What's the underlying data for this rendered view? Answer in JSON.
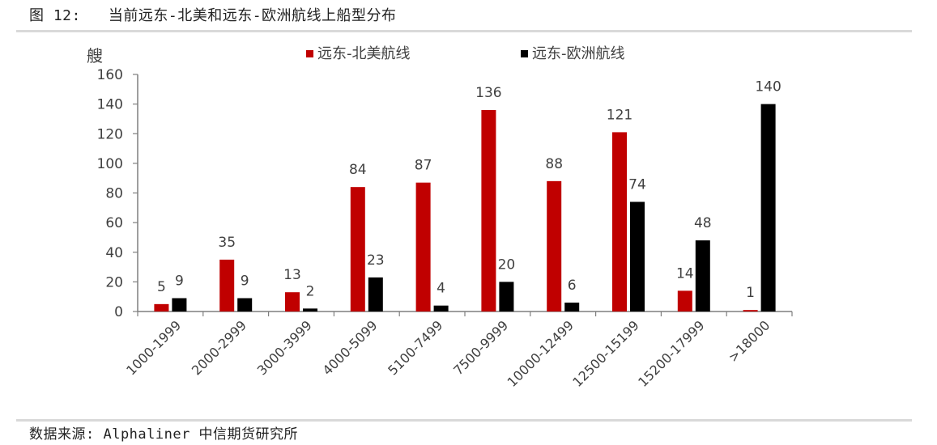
{
  "figure": {
    "number": "图 12:",
    "title": "当前远东-北美和远东-欧洲航线上船型分布"
  },
  "source": "数据来源: Alphaliner 中信期货研究所",
  "colors": {
    "series_1": "#c00000",
    "series_2": "#000000",
    "axis": "#7f7f7f",
    "text": "#404040"
  },
  "chart_data": {
    "type": "bar",
    "title": "",
    "ylabel": "艘",
    "xlabel": "",
    "ylim": [
      0,
      160
    ],
    "yticks": [
      0,
      20,
      40,
      60,
      80,
      100,
      120,
      140,
      160
    ],
    "grid": false,
    "legend_position": "top",
    "categories": [
      "1000-1999",
      "2000-2999",
      "3000-3999",
      "4000-5099",
      "5100-7499",
      "7500-9999",
      "10000-12499",
      "12500-15199",
      "15200-17999",
      ">18000"
    ],
    "series": [
      {
        "name": "远东-北美航线",
        "color": "#c00000",
        "values": [
          5,
          35,
          13,
          84,
          87,
          136,
          88,
          121,
          14,
          1
        ]
      },
      {
        "name": "远东-欧洲航线",
        "color": "#000000",
        "values": [
          9,
          9,
          2,
          23,
          4,
          20,
          6,
          74,
          48,
          140
        ]
      }
    ]
  }
}
